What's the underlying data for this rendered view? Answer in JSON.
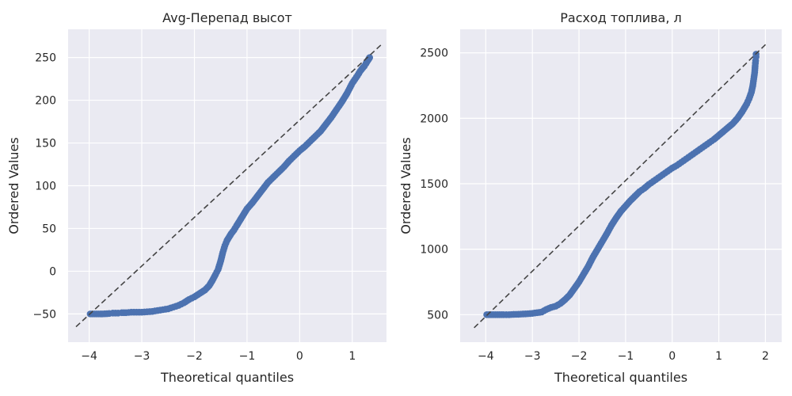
{
  "chart_data": [
    {
      "type": "scatter",
      "title": "Avg-Перепад высот",
      "xlabel": "Theoretical quantiles",
      "ylabel": "Ordered Values",
      "xlim": [
        -4.4,
        1.65
      ],
      "ylim": [
        -83,
        283
      ],
      "xticks": [
        -4,
        -3,
        -2,
        -1,
        0,
        1
      ],
      "xtick_labels": [
        "−4",
        "−3",
        "−2",
        "−1",
        "0",
        "1"
      ],
      "yticks": [
        -50,
        0,
        50,
        100,
        150,
        200,
        250
      ],
      "ytick_labels": [
        "−50",
        "0",
        "50",
        "100",
        "150",
        "200",
        "250"
      ],
      "grid": true,
      "reference_line": {
        "x": [
          -4.25,
          1.55
        ],
        "y": [
          -65,
          265
        ]
      },
      "series": [
        {
          "color": "#4C72B0",
          "x": [
            -3.98,
            -3.75,
            -3.62,
            -3.55,
            -3.45,
            -3.38,
            -3.3,
            -3.2,
            -3.1,
            -3.0,
            -2.9,
            -2.8,
            -2.7,
            -2.6,
            -2.5,
            -2.4,
            -2.3,
            -2.2,
            -2.1,
            -2.0,
            -1.9,
            -1.8,
            -1.72,
            -1.66,
            -1.6,
            -1.55,
            -1.5,
            -1.46,
            -1.42,
            -1.38,
            -1.34,
            -1.3,
            -1.25,
            -1.2,
            -1.1,
            -1.0,
            -0.9,
            -0.8,
            -0.7,
            -0.6,
            -0.5,
            -0.4,
            -0.3,
            -0.2,
            -0.1,
            0.0,
            0.1,
            0.2,
            0.3,
            0.4,
            0.5,
            0.6,
            0.7,
            0.8,
            0.9,
            1.0,
            1.1,
            1.15,
            1.2,
            1.23,
            1.26,
            1.28,
            1.3,
            1.31,
            1.32,
            1.33
          ],
          "y": [
            -50,
            -50,
            -49.5,
            -49,
            -49,
            -48.5,
            -48.5,
            -48,
            -48,
            -48,
            -47.5,
            -47,
            -46,
            -45,
            -44,
            -42,
            -40,
            -37,
            -33,
            -30,
            -26,
            -22,
            -17,
            -11,
            -4,
            2,
            12,
            22,
            30,
            36,
            40,
            44,
            48,
            53,
            63,
            73,
            80,
            88,
            96,
            104,
            110,
            116,
            122,
            129,
            135,
            141,
            146,
            152,
            158,
            164,
            172,
            180,
            189,
            198,
            208,
            220,
            229,
            234,
            238,
            240,
            243,
            245,
            247,
            248,
            249,
            250
          ]
        }
      ]
    },
    {
      "type": "scatter",
      "title": "Расход топлива, л",
      "xlabel": "Theoretical quantiles",
      "ylabel": "Ordered Values",
      "xlim": [
        -4.55,
        2.35
      ],
      "ylim": [
        290,
        2680
      ],
      "xticks": [
        -4,
        -3,
        -2,
        -1,
        0,
        1,
        2
      ],
      "xtick_labels": [
        "−4",
        "−3",
        "−2",
        "−1",
        "0",
        "1",
        "2"
      ],
      "yticks": [
        500,
        1000,
        1500,
        2000,
        2500
      ],
      "ytick_labels": [
        "500",
        "1000",
        "1500",
        "2000",
        "2500"
      ],
      "grid": true,
      "reference_line": {
        "x": [
          -4.25,
          2.05
        ],
        "y": [
          400,
          2580
        ]
      },
      "series": [
        {
          "color": "#4C72B0",
          "x": [
            -3.98,
            -3.75,
            -3.62,
            -3.5,
            -3.4,
            -3.3,
            -3.2,
            -3.1,
            -3.0,
            -2.9,
            -2.8,
            -2.7,
            -2.6,
            -2.5,
            -2.4,
            -2.3,
            -2.2,
            -2.1,
            -2.0,
            -1.9,
            -1.8,
            -1.7,
            -1.6,
            -1.5,
            -1.4,
            -1.3,
            -1.2,
            -1.1,
            -1.0,
            -0.9,
            -0.8,
            -0.7,
            -0.6,
            -0.5,
            -0.4,
            -0.3,
            -0.2,
            -0.1,
            0.0,
            0.1,
            0.2,
            0.3,
            0.4,
            0.5,
            0.6,
            0.7,
            0.8,
            0.9,
            1.0,
            1.1,
            1.2,
            1.3,
            1.4,
            1.5,
            1.55,
            1.6,
            1.65,
            1.7,
            1.73,
            1.75,
            1.77,
            1.78,
            1.79,
            1.8,
            1.8
          ],
          "y": [
            500,
            500,
            500,
            500,
            502,
            503,
            505,
            507,
            510,
            515,
            520,
            540,
            555,
            565,
            585,
            615,
            650,
            700,
            750,
            810,
            870,
            940,
            1000,
            1060,
            1120,
            1185,
            1240,
            1290,
            1330,
            1370,
            1405,
            1440,
            1465,
            1495,
            1520,
            1545,
            1570,
            1595,
            1620,
            1640,
            1665,
            1690,
            1715,
            1740,
            1765,
            1790,
            1815,
            1840,
            1870,
            1900,
            1930,
            1960,
            2000,
            2050,
            2080,
            2110,
            2150,
            2200,
            2250,
            2300,
            2350,
            2400,
            2440,
            2470,
            2490
          ]
        }
      ]
    }
  ]
}
